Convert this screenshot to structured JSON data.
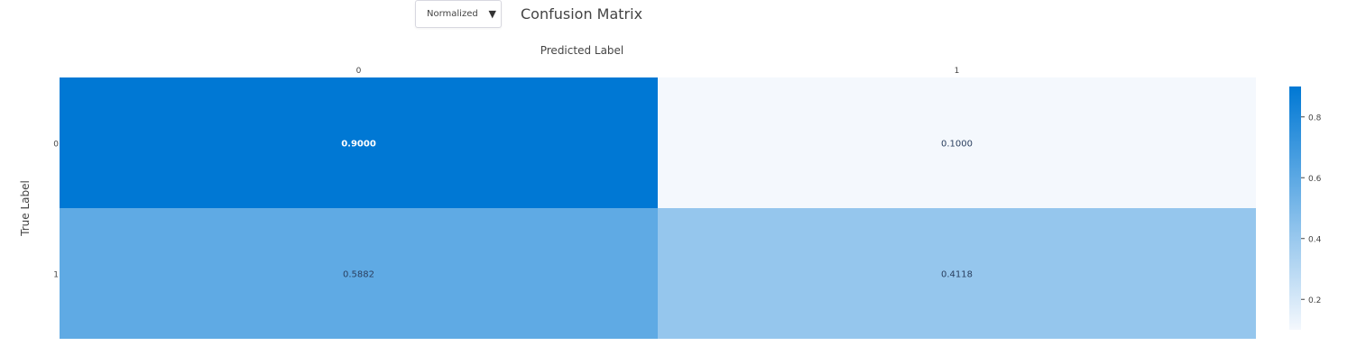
{
  "controls": {
    "normalize_select": {
      "value": "Normalized",
      "caret": "▼"
    }
  },
  "chart_data": {
    "type": "heatmap",
    "title": "Confusion Matrix",
    "xlabel": "Predicted Label",
    "ylabel": "True Label",
    "x_categories": [
      "0",
      "1"
    ],
    "y_categories": [
      "0",
      "1"
    ],
    "values": [
      [
        0.9,
        0.1
      ],
      [
        0.5882,
        0.4118
      ]
    ],
    "cell_labels": [
      [
        "0.9000",
        "0.1000"
      ],
      [
        "0.5882",
        "0.4118"
      ]
    ],
    "x_axis_position": "top",
    "colorscale": {
      "min": 0.1,
      "max": 0.9,
      "low_color": "#f4f8fd",
      "high_color": "#0078d4"
    },
    "colorbar": {
      "ticks": [
        "0.2",
        "0.4",
        "0.6",
        "0.8"
      ],
      "tick_values": [
        0.2,
        0.4,
        0.6,
        0.8
      ]
    }
  }
}
